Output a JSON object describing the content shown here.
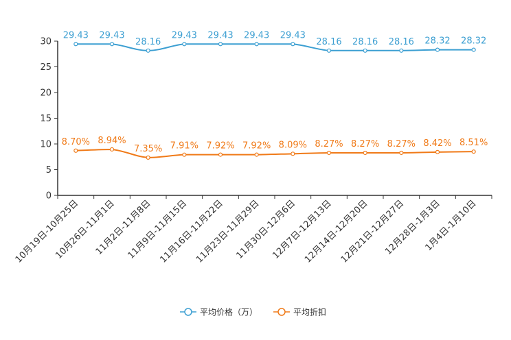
{
  "chart_data": {
    "type": "line",
    "title": "",
    "xlabel": "",
    "ylabel": "",
    "ylim": [
      0,
      30
    ],
    "yticks": [
      0,
      5,
      10,
      15,
      20,
      25,
      30
    ],
    "categories": [
      "10月19日-10月25日",
      "10月26日-11月1日",
      "11月2日-11月8日",
      "11月9日-11月15日",
      "11月16日-11月22日",
      "11月23日-11月29日",
      "11月30日-12月6日",
      "12月7日-12月13日",
      "12月14日-12月20日",
      "12月21日-12月27日",
      "12月28日-1月3日",
      "1月4日-1月10日"
    ],
    "series": [
      {
        "name": "平均价格（万）",
        "color": "#3c9fd2",
        "values": [
          29.43,
          29.43,
          28.16,
          29.43,
          29.43,
          29.43,
          29.43,
          28.16,
          28.16,
          28.16,
          28.32,
          28.32
        ],
        "labels": [
          "29.43",
          "29.43",
          "28.16",
          "29.43",
          "29.43",
          "29.43",
          "29.43",
          "28.16",
          "28.16",
          "28.16",
          "28.32",
          "28.32"
        ]
      },
      {
        "name": "平均折扣",
        "color": "#f07a18",
        "values": [
          8.7,
          8.94,
          7.35,
          7.91,
          7.92,
          7.92,
          8.09,
          8.27,
          8.27,
          8.27,
          8.42,
          8.51
        ],
        "labels": [
          "8.70%",
          "8.94%",
          "7.35%",
          "7.91%",
          "7.92%",
          "7.92%",
          "8.09%",
          "8.27%",
          "8.27%",
          "8.27%",
          "8.42%",
          "8.51%"
        ]
      }
    ],
    "legend_position": "bottom-center"
  }
}
